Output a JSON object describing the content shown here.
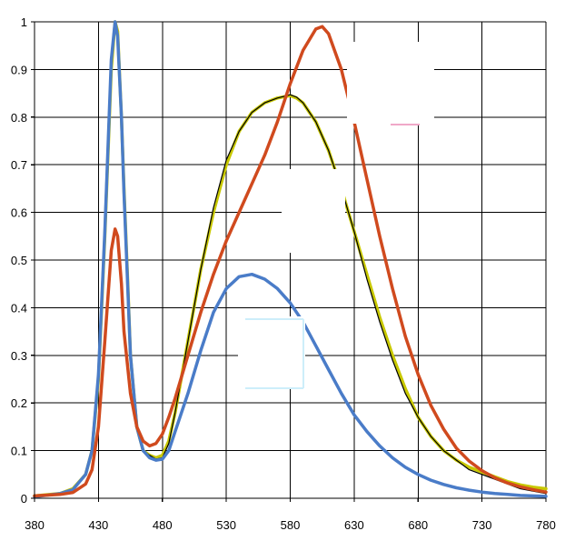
{
  "chart_data": {
    "type": "line",
    "title": "",
    "xlabel": "",
    "ylabel": "",
    "xlim": [
      380,
      780
    ],
    "ylim": [
      0,
      1
    ],
    "x_ticks": [
      380,
      430,
      480,
      530,
      580,
      630,
      680,
      730,
      780
    ],
    "y_ticks": [
      0,
      0.1,
      0.2,
      0.3,
      0.4,
      0.5,
      0.6,
      0.7,
      0.8,
      0.9,
      1
    ],
    "x_tick_labels": [
      "380",
      "430",
      "480",
      "530",
      "580",
      "630",
      "680",
      "730",
      "780"
    ],
    "y_tick_labels": [
      "0",
      "0.1",
      "0.2",
      "0.3",
      "0.4",
      "0.5",
      "0.6",
      "0.7",
      "0.8",
      "0.9",
      "1"
    ],
    "grid": "vertical and horizontal",
    "legend": "none",
    "series": [
      {
        "color": "#c8c800",
        "x": [
          380,
          400,
          410,
          420,
          425,
          430,
          435,
          440,
          443,
          445,
          448,
          450,
          453,
          455,
          460,
          465,
          470,
          475,
          480,
          485,
          490,
          500,
          510,
          520,
          530,
          540,
          550,
          560,
          570,
          580,
          585,
          590,
          600,
          610,
          620,
          630,
          640,
          650,
          660,
          670,
          680,
          690,
          700,
          710,
          720,
          730,
          740,
          750,
          760,
          770,
          780
        ],
        "y": [
          0.005,
          0.01,
          0.02,
          0.05,
          0.1,
          0.25,
          0.55,
          0.9,
          1.0,
          0.98,
          0.8,
          0.65,
          0.45,
          0.3,
          0.15,
          0.1,
          0.09,
          0.085,
          0.09,
          0.12,
          0.18,
          0.33,
          0.48,
          0.6,
          0.7,
          0.77,
          0.81,
          0.83,
          0.84,
          0.845,
          0.84,
          0.83,
          0.79,
          0.73,
          0.65,
          0.56,
          0.47,
          0.38,
          0.3,
          0.23,
          0.17,
          0.13,
          0.1,
          0.08,
          0.065,
          0.055,
          0.045,
          0.035,
          0.028,
          0.023,
          0.02
        ]
      },
      {
        "color": "#000000",
        "x": [
          380,
          400,
          410,
          420,
          425,
          430,
          435,
          440,
          443,
          445,
          448,
          450,
          453,
          455,
          460,
          465,
          470,
          475,
          480,
          485,
          490,
          500,
          510,
          520,
          530,
          540,
          550,
          560,
          570,
          580,
          585,
          590,
          600,
          610,
          620,
          630,
          640,
          650,
          660,
          670,
          680,
          690,
          700,
          710,
          720,
          730,
          740,
          750,
          760,
          770,
          780
        ],
        "y": [
          0.003,
          0.01,
          0.018,
          0.05,
          0.1,
          0.26,
          0.56,
          0.92,
          1.0,
          0.97,
          0.8,
          0.64,
          0.44,
          0.3,
          0.15,
          0.1,
          0.09,
          0.082,
          0.085,
          0.115,
          0.18,
          0.33,
          0.48,
          0.61,
          0.71,
          0.77,
          0.81,
          0.83,
          0.84,
          0.847,
          0.842,
          0.83,
          0.79,
          0.73,
          0.65,
          0.56,
          0.46,
          0.37,
          0.29,
          0.22,
          0.17,
          0.13,
          0.1,
          0.08,
          0.06,
          0.05,
          0.04,
          0.03,
          0.02,
          0.015,
          0.01
        ]
      },
      {
        "color": "#4a7cc8",
        "x": [
          380,
          400,
          410,
          420,
          425,
          430,
          435,
          440,
          443,
          445,
          448,
          450,
          453,
          455,
          460,
          465,
          470,
          475,
          480,
          485,
          490,
          500,
          510,
          520,
          530,
          540,
          550,
          560,
          570,
          580,
          590,
          600,
          610,
          620,
          630,
          640,
          650,
          660,
          670,
          680,
          690,
          700,
          710,
          720,
          730,
          740,
          750,
          760,
          770,
          780
        ],
        "y": [
          0.003,
          0.01,
          0.018,
          0.05,
          0.1,
          0.26,
          0.56,
          0.92,
          1.0,
          0.97,
          0.8,
          0.64,
          0.44,
          0.3,
          0.15,
          0.1,
          0.085,
          0.08,
          0.082,
          0.1,
          0.14,
          0.22,
          0.31,
          0.39,
          0.44,
          0.465,
          0.47,
          0.46,
          0.44,
          0.41,
          0.37,
          0.32,
          0.27,
          0.22,
          0.175,
          0.14,
          0.11,
          0.085,
          0.065,
          0.05,
          0.038,
          0.029,
          0.022,
          0.017,
          0.013,
          0.01,
          0.008,
          0.006,
          0.005,
          0.004
        ]
      },
      {
        "color": "#d04a1e",
        "x": [
          380,
          400,
          410,
          420,
          425,
          430,
          435,
          440,
          443,
          445,
          448,
          450,
          455,
          460,
          465,
          470,
          475,
          480,
          485,
          490,
          500,
          510,
          520,
          530,
          540,
          550,
          560,
          570,
          580,
          590,
          600,
          605,
          610,
          620,
          630,
          640,
          650,
          660,
          670,
          680,
          690,
          700,
          710,
          720,
          730,
          740,
          750,
          760,
          770,
          780
        ],
        "y": [
          0.005,
          0.008,
          0.012,
          0.03,
          0.06,
          0.15,
          0.33,
          0.52,
          0.565,
          0.55,
          0.45,
          0.35,
          0.22,
          0.15,
          0.12,
          0.11,
          0.115,
          0.135,
          0.17,
          0.21,
          0.3,
          0.39,
          0.47,
          0.54,
          0.6,
          0.66,
          0.72,
          0.79,
          0.87,
          0.94,
          0.985,
          0.99,
          0.975,
          0.9,
          0.79,
          0.67,
          0.55,
          0.44,
          0.34,
          0.26,
          0.195,
          0.145,
          0.105,
          0.078,
          0.058,
          0.043,
          0.032,
          0.024,
          0.018,
          0.013
        ]
      }
    ]
  }
}
